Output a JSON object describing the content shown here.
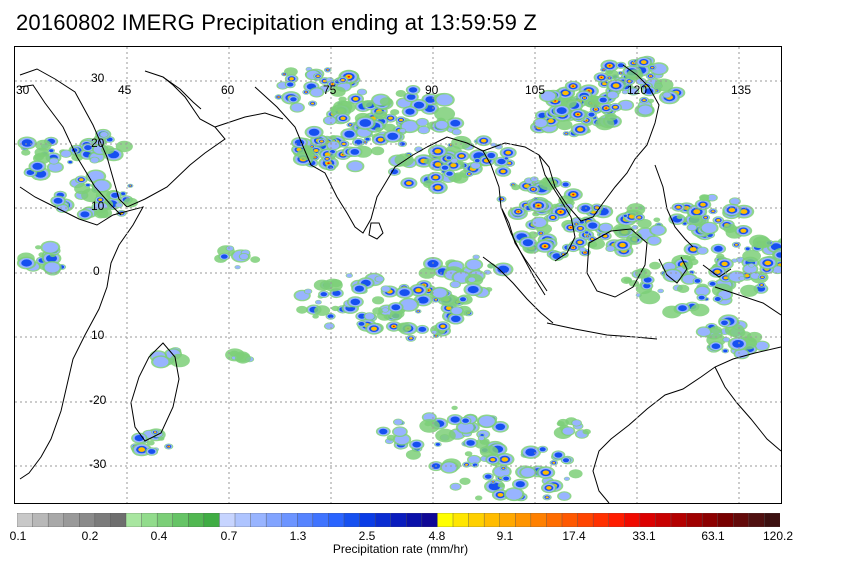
{
  "title": "20160802 IMERG Precipitation ending at 13:59:59 Z",
  "map": {
    "lon_labels": [
      "30",
      "45",
      "60",
      "75",
      "90",
      "105",
      "120",
      "135"
    ],
    "lat_labels": [
      "30",
      "20",
      "10",
      "0",
      "10",
      "-20",
      "-30"
    ]
  },
  "colorbar": {
    "tick_labels": [
      "0.1",
      "0.2",
      "0.4",
      "0.7",
      "1.3",
      "2.5",
      "4.8",
      "9.1",
      "17.4",
      "33.1",
      "63.1",
      "120.2"
    ],
    "label": "Precipitation rate (mm/hr)",
    "colors": [
      "#c8c8c8",
      "#b8b8b8",
      "#a8a8a8",
      "#999999",
      "#8a8a8a",
      "#7b7b7b",
      "#6e6e6e",
      "#a8e6a0",
      "#92dc8c",
      "#7ccf78",
      "#66c466",
      "#52b852",
      "#40ad44",
      "#c6d4ff",
      "#aec4ff",
      "#98b4ff",
      "#82a4ff",
      "#6c94ff",
      "#5684ff",
      "#4074ff",
      "#2a64ff",
      "#1650f0",
      "#0a3ce6",
      "#0a2cd2",
      "#0a1cbe",
      "#0a10aa",
      "#100896",
      "#ffff00",
      "#ffe600",
      "#ffd000",
      "#ffbc00",
      "#ffa800",
      "#ff9400",
      "#ff8000",
      "#ff6c00",
      "#ff5800",
      "#ff4400",
      "#ff3000",
      "#ff1c00",
      "#f00a00",
      "#dc0000",
      "#c80000",
      "#b40000",
      "#a00000",
      "#8c0000",
      "#780000",
      "#640a0a",
      "#501010",
      "#3c1010"
    ]
  },
  "colors": {
    "light": "#7ccf78",
    "low": "#98b4ff",
    "mid": "#1650f0",
    "high": "#ffbc00",
    "extreme": "#f00a00",
    "coast": "#000000",
    "grid": "#999999"
  }
}
